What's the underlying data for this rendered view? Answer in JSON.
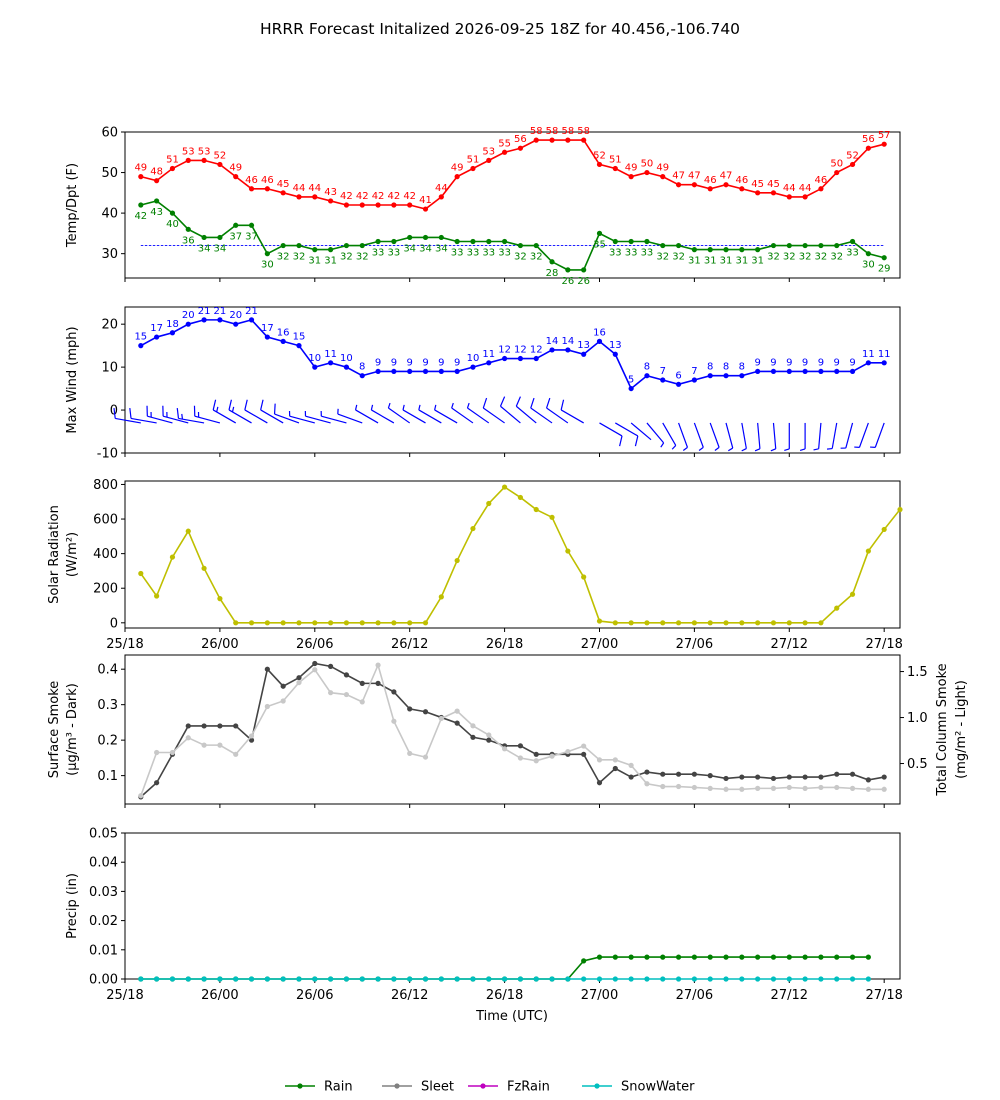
{
  "chart_data": {
    "title": "HRRR Forecast Initalized 2026-09-25 18Z for 40.456,-106.740",
    "time_tick_labels": [
      "25/18",
      "26/00",
      "26/06",
      "26/12",
      "26/18",
      "27/00",
      "27/06",
      "27/12",
      "27/18"
    ],
    "xlabel": "Time (UTC)",
    "panels": [
      {
        "type": "line",
        "ylabel": "Temp/Dpt (F)",
        "ylim": [
          24,
          60
        ],
        "yticks": [
          "30",
          "40",
          "50",
          "60"
        ],
        "reference_line": {
          "value": 32,
          "color": "#0000ff",
          "style": "dashed"
        },
        "series": [
          {
            "color": "#ff0000",
            "labels": "above",
            "values": [
              49,
              48,
              51,
              53,
              53,
              52,
              49,
              46,
              46,
              45,
              44,
              44,
              43,
              42,
              42,
              42,
              42,
              42,
              41,
              44,
              49,
              51,
              53,
              55,
              56,
              58,
              58,
              58,
              58,
              52,
              51,
              49,
              50,
              49,
              47,
              47,
              46,
              47,
              46,
              45,
              45,
              44,
              44,
              46,
              50,
              52,
              56,
              57
            ]
          },
          {
            "color": "#008000",
            "labels": "below",
            "values": [
              42,
              43,
              40,
              36,
              34,
              34,
              37,
              37,
              30,
              32,
              32,
              31,
              31,
              32,
              32,
              33,
              33,
              34,
              34,
              34,
              33,
              33,
              33,
              33,
              32,
              32,
              28,
              26,
              26,
              35,
              33,
              33,
              33,
              32,
              32,
              31,
              31,
              31,
              31,
              31,
              32,
              32,
              32,
              32,
              32,
              33,
              30,
              29
            ]
          }
        ]
      },
      {
        "type": "line",
        "ylabel": "Max Wind (mph)",
        "ylim": [
          -10,
          24
        ],
        "yticks": [
          "-10",
          "0",
          "10",
          "20"
        ],
        "series": [
          {
            "color": "#0000ff",
            "labels": "above",
            "values": [
              15,
              17,
              18,
              20,
              21,
              21,
              20,
              21,
              17,
              16,
              15,
              10,
              11,
              10,
              8,
              9,
              9,
              9,
              9,
              9,
              9,
              10,
              11,
              12,
              12,
              12,
              14,
              14,
              13,
              16,
              13,
              5,
              8,
              7,
              6,
              7,
              8,
              8,
              8,
              9,
              9,
              9,
              9,
              9,
              9,
              9,
              11,
              11
            ]
          }
        ],
        "barbs": {
          "color": "#0000ff",
          "baseline": -3,
          "direction_deg": [
            280,
            280,
            285,
            285,
            280,
            285,
            300,
            300,
            300,
            300,
            290,
            285,
            285,
            285,
            290,
            300,
            300,
            305,
            300,
            300,
            300,
            305,
            305,
            305,
            310,
            310,
            305,
            305,
            300,
            120,
            120,
            130,
            140,
            150,
            160,
            160,
            160,
            165,
            170,
            175,
            175,
            180,
            180,
            185,
            190,
            195,
            200,
            200
          ]
        }
      },
      {
        "type": "line",
        "ylabel": "Solar Radiation",
        "ylabel2": "(W/m²)",
        "ylim": [
          -30,
          820
        ],
        "yticks": [
          "0",
          "200",
          "400",
          "600",
          "800"
        ],
        "series": [
          {
            "color": "#bfbf00",
            "values": [
              285,
              155,
              380,
              530,
              315,
              140,
              0,
              0,
              0,
              0,
              0,
              0,
              0,
              0,
              0,
              0,
              0,
              0,
              0,
              150,
              360,
              545,
              690,
              785,
              725,
              655,
              610,
              415,
              265,
              10,
              0,
              0,
              0,
              0,
              0,
              0,
              0,
              0,
              0,
              0,
              0,
              0,
              0,
              0,
              85,
              165,
              415,
              540,
              655
            ]
          }
        ]
      },
      {
        "type": "line",
        "ylabel": "Surface Smoke",
        "ylabel2": "(μg/m³ - Dark)",
        "ylabel_right": "Total Column Smoke",
        "ylabel_right2": "(mg/m² - Light)",
        "ylim": [
          0.02,
          0.44
        ],
        "yticks": [
          "0.1",
          "0.2",
          "0.3",
          "0.4"
        ],
        "ylim_right": [
          0.06,
          1.68
        ],
        "yticks_right": [
          "0.5",
          "1.0",
          "1.5"
        ],
        "series": [
          {
            "color": "#444444",
            "axis": "left",
            "values": [
              0.04,
              0.08,
              0.16,
              0.24,
              0.24,
              0.24,
              0.24,
              0.2,
              0.4,
              0.352,
              0.376,
              0.416,
              0.408,
              0.384,
              0.36,
              0.36,
              0.336,
              0.288,
              0.28,
              0.264,
              0.248,
              0.208,
              0.2,
              0.184,
              0.184,
              0.16,
              0.16,
              0.16,
              0.16,
              0.08,
              0.12,
              0.096,
              0.11,
              0.104,
              0.104,
              0.104,
              0.1,
              0.092,
              0.096,
              0.096,
              0.092,
              0.096,
              0.096,
              0.096,
              0.104,
              0.104,
              0.088,
              0.096
            ]
          },
          {
            "color": "#c8c8c8",
            "axis": "right",
            "values": [
              0.15,
              0.62,
              0.62,
              0.78,
              0.7,
              0.7,
              0.6,
              0.8,
              1.12,
              1.18,
              1.38,
              1.52,
              1.27,
              1.25,
              1.17,
              1.57,
              0.96,
              0.61,
              0.57,
              0.99,
              1.07,
              0.91,
              0.81,
              0.66,
              0.56,
              0.53,
              0.58,
              0.63,
              0.69,
              0.54,
              0.54,
              0.48,
              0.28,
              0.25,
              0.25,
              0.24,
              0.23,
              0.22,
              0.22,
              0.23,
              0.23,
              0.24,
              0.23,
              0.24,
              0.24,
              0.23,
              0.22,
              0.22
            ]
          }
        ]
      },
      {
        "type": "line",
        "ylabel": "Precip (in)",
        "ylim": [
          0,
          0.05
        ],
        "yticks": [
          "0.00",
          "0.01",
          "0.02",
          "0.03",
          "0.04",
          "0.05"
        ],
        "series": [
          {
            "name": "Rain",
            "color": "#008000",
            "values": [
              0,
              0,
              0,
              0,
              0,
              0,
              0,
              0,
              0,
              0,
              0,
              0,
              0,
              0,
              0,
              0,
              0,
              0,
              0,
              0,
              0,
              0,
              0,
              0,
              0,
              0,
              0,
              0,
              0.0062,
              0.0075,
              0.0075,
              0.0075,
              0.0075,
              0.0075,
              0.0075,
              0.0075,
              0.0075,
              0.0075,
              0.0075,
              0.0075,
              0.0075,
              0.0075,
              0.0075,
              0.0075,
              0.0075,
              0.0075,
              0.0075
            ]
          },
          {
            "name": "Sleet",
            "color": "#808080"
          },
          {
            "name": "FzRain",
            "color": "#bf00bf"
          },
          {
            "name": "SnowWater",
            "color": "#00bfbf",
            "values": [
              0,
              0,
              0,
              0,
              0,
              0,
              0,
              0,
              0,
              0,
              0,
              0,
              0,
              0,
              0,
              0,
              0,
              0,
              0,
              0,
              0,
              0,
              0,
              0,
              0,
              0,
              0,
              0,
              0,
              0,
              0,
              0,
              0,
              0,
              0,
              0,
              0,
              0,
              0,
              0,
              0,
              0,
              0,
              0,
              0,
              0,
              0
            ]
          }
        ]
      }
    ],
    "legend": {
      "placement": "bottom-center",
      "items": [
        {
          "label": "Rain",
          "color": "#008000"
        },
        {
          "label": "Sleet",
          "color": "#808080"
        },
        {
          "label": "FzRain",
          "color": "#bf00bf"
        },
        {
          "label": "SnowWater",
          "color": "#00bfbf"
        }
      ]
    }
  }
}
